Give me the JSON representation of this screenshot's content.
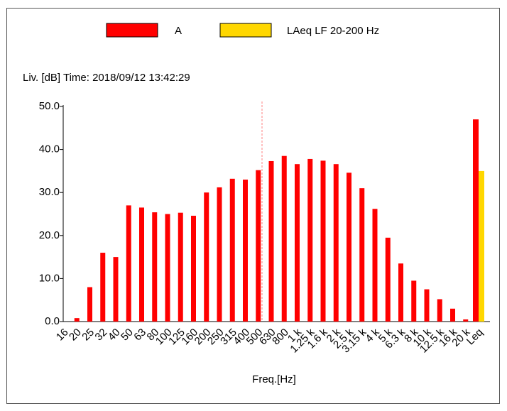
{
  "chart_data": {
    "type": "bar",
    "subtitle": "Liv. [dB]   Time: 2018/09/12 13:42:29",
    "x_label": "Freq.[Hz]",
    "categories": [
      "16",
      "20",
      "25",
      "32",
      "40",
      "50",
      "63",
      "80",
      "100",
      "125",
      "160",
      "200",
      "250",
      "315",
      "400",
      "500",
      "630",
      "800",
      "1 k",
      "1.25 k",
      "1.6 k",
      "2 k",
      "2.5 k",
      "3.15 k",
      "4 k",
      "5 k",
      "6.3 k",
      "8 k",
      "10 k",
      "12.5 k",
      "16 k",
      "20 k",
      "Leq"
    ],
    "series": [
      {
        "name": "A",
        "color": "#ff0000",
        "values": [
          null,
          0.8,
          8,
          16,
          15,
          27,
          26.5,
          25.4,
          25,
          25.3,
          24.6,
          30,
          31.2,
          33.2,
          33,
          35.2,
          37.3,
          38.5,
          36.6,
          37.8,
          37.4,
          36.6,
          34.6,
          31,
          26.2,
          19.5,
          13.5,
          9.5,
          7.5,
          5.2,
          3,
          0.5,
          47
        ]
      },
      {
        "name": "LAeq LF 20-200 Hz",
        "color": "#ffd700",
        "values": [
          null,
          null,
          null,
          null,
          null,
          null,
          null,
          null,
          null,
          null,
          null,
          null,
          null,
          null,
          null,
          null,
          null,
          null,
          null,
          null,
          null,
          null,
          null,
          null,
          null,
          null,
          null,
          null,
          null,
          null,
          null,
          null,
          35
        ]
      }
    ],
    "ylim": [
      0,
      50
    ],
    "yticks": [
      {
        "value": 0,
        "label": "0.0"
      },
      {
        "value": 10,
        "label": "10.0"
      },
      {
        "value": 20,
        "label": "20.0"
      },
      {
        "value": 30,
        "label": "30.0"
      },
      {
        "value": 40,
        "label": "40.0"
      },
      {
        "value": 50,
        "label": "50.0"
      }
    ]
  }
}
